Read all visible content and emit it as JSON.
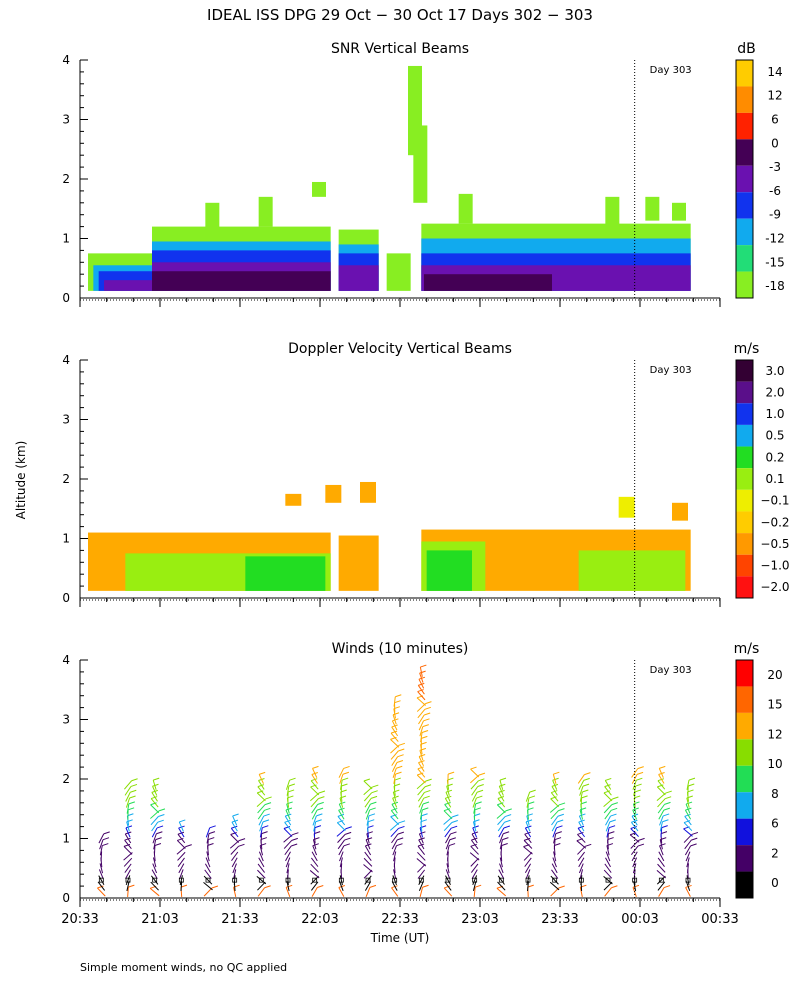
{
  "figure": {
    "title": "IDEAL ISS DPG  29 Oct − 30 Oct 17 Days 302 − 303",
    "shared_ylabel": "Altitude (km)",
    "xlabel": "Time (UT)",
    "footnote": "Simple moment winds, no QC applied",
    "x_tick_labels": [
      "20:33",
      "21:03",
      "21:33",
      "22:03",
      "22:33",
      "23:03",
      "23:33",
      "00:03",
      "00:33"
    ],
    "y_tick_labels": [
      "0",
      "1",
      "2",
      "3",
      "4"
    ],
    "day_marker_label": "Day 303"
  },
  "chart_data": [
    {
      "type": "heatmap",
      "title": "SNR Vertical Beams",
      "colorbar_unit": "dB",
      "colorbar_labels": [
        "14",
        "12",
        "6",
        "0",
        "-3",
        "-6",
        "-9",
        "-12",
        "-15",
        "-18"
      ],
      "colorbar_colors": [
        "#ffcc00",
        "#ff8c00",
        "#ff2200",
        "#440055",
        "#6a11b0",
        "#1133ee",
        "#11aaee",
        "#22dd77",
        "#88ee22"
      ],
      "x_range": [
        "20:33",
        "00:33"
      ],
      "ylim": [
        0,
        4
      ],
      "day_marker_time": "00:01",
      "layers": [
        {
          "name": "-18",
          "color": "#88ee22",
          "segments": [
            {
              "t0": "20:36",
              "t1": "21:00",
              "top": 0.75
            },
            {
              "t0": "21:00",
              "t1": "22:07",
              "top": 1.2
            },
            {
              "t0": "22:10",
              "t1": "22:25",
              "top": 1.15
            },
            {
              "t0": "22:28",
              "t1": "22:37",
              "top": 0.75
            },
            {
              "t0": "22:41",
              "t1": "00:22",
              "top": 1.25
            }
          ]
        },
        {
          "name": "-12",
          "color": "#11aaee",
          "segments": [
            {
              "t0": "20:38",
              "t1": "21:00",
              "top": 0.55
            },
            {
              "t0": "21:00",
              "t1": "22:07",
              "top": 0.95
            },
            {
              "t0": "22:10",
              "t1": "22:25",
              "top": 0.9
            },
            {
              "t0": "22:41",
              "t1": "00:22",
              "top": 1.0
            }
          ]
        },
        {
          "name": "-9",
          "color": "#1133ee",
          "segments": [
            {
              "t0": "20:40",
              "t1": "21:00",
              "top": 0.45
            },
            {
              "t0": "21:00",
              "t1": "22:07",
              "top": 0.8
            },
            {
              "t0": "22:10",
              "t1": "22:25",
              "top": 0.75
            },
            {
              "t0": "22:41",
              "t1": "00:22",
              "top": 0.75
            }
          ]
        },
        {
          "name": "-6",
          "color": "#6a11b0",
          "segments": [
            {
              "t0": "20:42",
              "t1": "21:00",
              "top": 0.3
            },
            {
              "t0": "21:00",
              "t1": "22:07",
              "top": 0.6
            },
            {
              "t0": "22:10",
              "t1": "22:25",
              "top": 0.55
            },
            {
              "t0": "22:41",
              "t1": "00:22",
              "top": 0.55
            }
          ]
        },
        {
          "name": "-3",
          "color": "#440055",
          "segments": [
            {
              "t0": "21:00",
              "t1": "22:07",
              "top": 0.45
            },
            {
              "t0": "22:42",
              "t1": "23:30",
              "top": 0.4
            }
          ]
        }
      ]
    },
    {
      "type": "heatmap",
      "title": "Doppler Velocity Vertical Beams",
      "colorbar_unit": "m/s",
      "colorbar_labels": [
        "3.0",
        "2.0",
        "1.0",
        "0.5",
        "0.2",
        "0.1",
        "−0.1",
        "−0.2",
        "−0.5",
        "−1.0",
        "−2.0"
      ],
      "colorbar_colors": [
        "#330033",
        "#5a0f8a",
        "#1133ee",
        "#11aaee",
        "#22dd22",
        "#99ee11",
        "#eeee00",
        "#ffcc00",
        "#ff9900",
        "#ff4400",
        "#ff1111"
      ],
      "x_range": [
        "20:33",
        "00:33"
      ],
      "ylim": [
        0,
        4
      ],
      "day_marker_time": "00:01",
      "layers": [
        {
          "name": "-0.2",
          "color": "#ffaa00",
          "segments": [
            {
              "t0": "20:36",
              "t1": "22:07",
              "top": 1.1
            },
            {
              "t0": "22:10",
              "t1": "22:25",
              "top": 1.05
            },
            {
              "t0": "22:41",
              "t1": "00:22",
              "top": 1.15
            }
          ]
        },
        {
          "name": "0.1",
          "color": "#99ee11",
          "segments": [
            {
              "t0": "20:50",
              "t1": "22:07",
              "top": 0.75
            },
            {
              "t0": "22:41",
              "t1": "23:05",
              "top": 0.95
            },
            {
              "t0": "23:40",
              "t1": "00:20",
              "top": 0.8
            }
          ]
        },
        {
          "name": "0.2",
          "color": "#22dd22",
          "segments": [
            {
              "t0": "21:35",
              "t1": "22:05",
              "top": 0.7
            },
            {
              "t0": "22:43",
              "t1": "23:00",
              "top": 0.8
            }
          ]
        }
      ]
    },
    {
      "type": "wind barbs",
      "title": "Winds (10 minutes)",
      "colorbar_unit": "m/s",
      "colorbar_labels": [
        "20",
        "15",
        "12",
        "10",
        "8",
        "6",
        "2",
        "0"
      ],
      "colorbar_colors": [
        "#ff0000",
        "#ff6600",
        "#ffaa00",
        "#88dd00",
        "#22dd55",
        "#11aaee",
        "#1111dd",
        "#440066",
        "#000000"
      ],
      "x_range": [
        "20:33",
        "00:33"
      ],
      "ylim": [
        0,
        4
      ],
      "day_marker_time": "00:01",
      "profile_times": [
        "20:41",
        "20:51",
        "21:01",
        "21:11",
        "21:21",
        "21:31",
        "21:41",
        "21:51",
        "22:01",
        "22:11",
        "22:21",
        "22:31",
        "22:41",
        "22:51",
        "23:01",
        "23:11",
        "23:21",
        "23:31",
        "23:41",
        "23:51",
        "00:01",
        "00:11",
        "00:21"
      ],
      "profile_tops_km": [
        1.0,
        2.0,
        2.0,
        1.2,
        1.1,
        1.3,
        2.1,
        2.0,
        2.2,
        2.2,
        2.0,
        3.4,
        3.9,
        2.1,
        2.2,
        2.0,
        1.8,
        2.1,
        2.1,
        2.0,
        2.2,
        2.2,
        2.0
      ],
      "speed_profile_ms": [
        {
          "alt_km": 0.2,
          "speed": 1
        },
        {
          "alt_km": 0.6,
          "speed": 3
        },
        {
          "alt_km": 1.0,
          "speed": 6
        },
        {
          "alt_km": 1.4,
          "speed": 10
        },
        {
          "alt_km": 1.8,
          "speed": 14
        },
        {
          "alt_km": 2.4,
          "speed": 17
        },
        {
          "alt_km": 3.0,
          "speed": 19
        },
        {
          "alt_km": 3.8,
          "speed": 21
        }
      ]
    }
  ]
}
